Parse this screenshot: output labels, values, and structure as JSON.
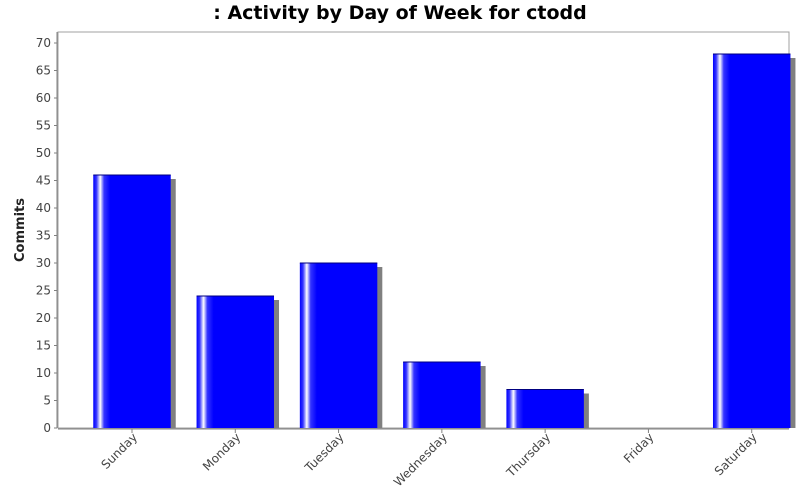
{
  "chart_data": {
    "type": "bar",
    "title": ": Activity by Day of Week for ctodd",
    "xlabel": "",
    "ylabel": "Commits",
    "categories": [
      "Sunday",
      "Monday",
      "Tuesday",
      "Wednesday",
      "Thursday",
      "Friday",
      "Saturday"
    ],
    "values": [
      46,
      24,
      30,
      12,
      7,
      0,
      68
    ],
    "ylim": [
      0,
      72
    ],
    "yticks": [
      0,
      5,
      10,
      15,
      20,
      25,
      30,
      35,
      40,
      45,
      50,
      55,
      60,
      65,
      70
    ],
    "grid": false,
    "legend": "none",
    "colors": {
      "bar": "#0000ff",
      "bar_highlight": "#ffffff",
      "shadow": "#808080",
      "axis": "#808080"
    }
  }
}
